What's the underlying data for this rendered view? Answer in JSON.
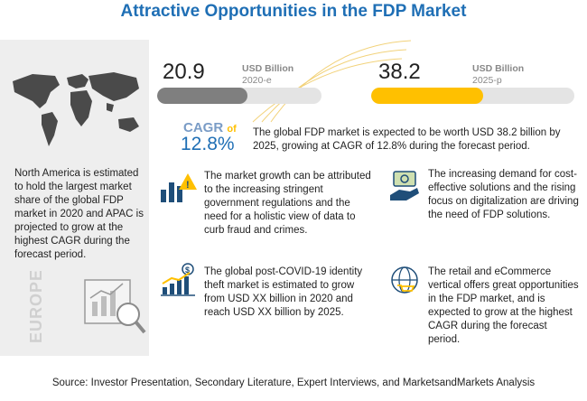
{
  "title": "Attractive Opportunities in the FDP Market",
  "left_panel": {
    "text": "North America is estimated to hold the largest market share of the global FDP market in 2020 and APAC is projected to grow at the highest CAGR during the forecast period.",
    "region_label": "EUROPE"
  },
  "stats": [
    {
      "value": "20.9",
      "unit": "USD Billion",
      "year": "2020-e",
      "fill_fraction": 0.55,
      "color": "#7f7f7f"
    },
    {
      "value": "38.2",
      "unit": "USD Billion",
      "year": "2025-p",
      "fill_fraction": 0.55,
      "color": "#ffc000"
    }
  ],
  "cagr": {
    "label": "CAGR",
    "of": "of",
    "value": "12.8%",
    "text": "The global FDP market is expected to be worth USD 38.2 billion by 2025, growing at CAGR of 12.8% during the forecast period."
  },
  "cards": [
    {
      "text": "The market growth can be attributed to the increasing stringent government regulations and the need for a holistic view of data to curb fraud and crimes.",
      "icon": "warning-bars-icon"
    },
    {
      "text": "The increasing demand for cost-effective solutions and the rising focus on digitalization are driving the need of FDP solutions.",
      "icon": "money-hand-icon"
    },
    {
      "text": "The global post-COVID-19 identity theft market is estimated to grow from USD XX billion in 2020 and reach USD XX billion by 2025.",
      "icon": "growth-chart-icon"
    },
    {
      "text": "The retail and eCommerce vertical offers great opportunities in the FDP market, and is expected to grow at the highest CAGR during the forecast period.",
      "icon": "globe-cart-icon"
    }
  ],
  "source": "Source: Investor Presentation, Secondary Literature, Expert Interviews, and MarketsandMarkets Analysis"
}
